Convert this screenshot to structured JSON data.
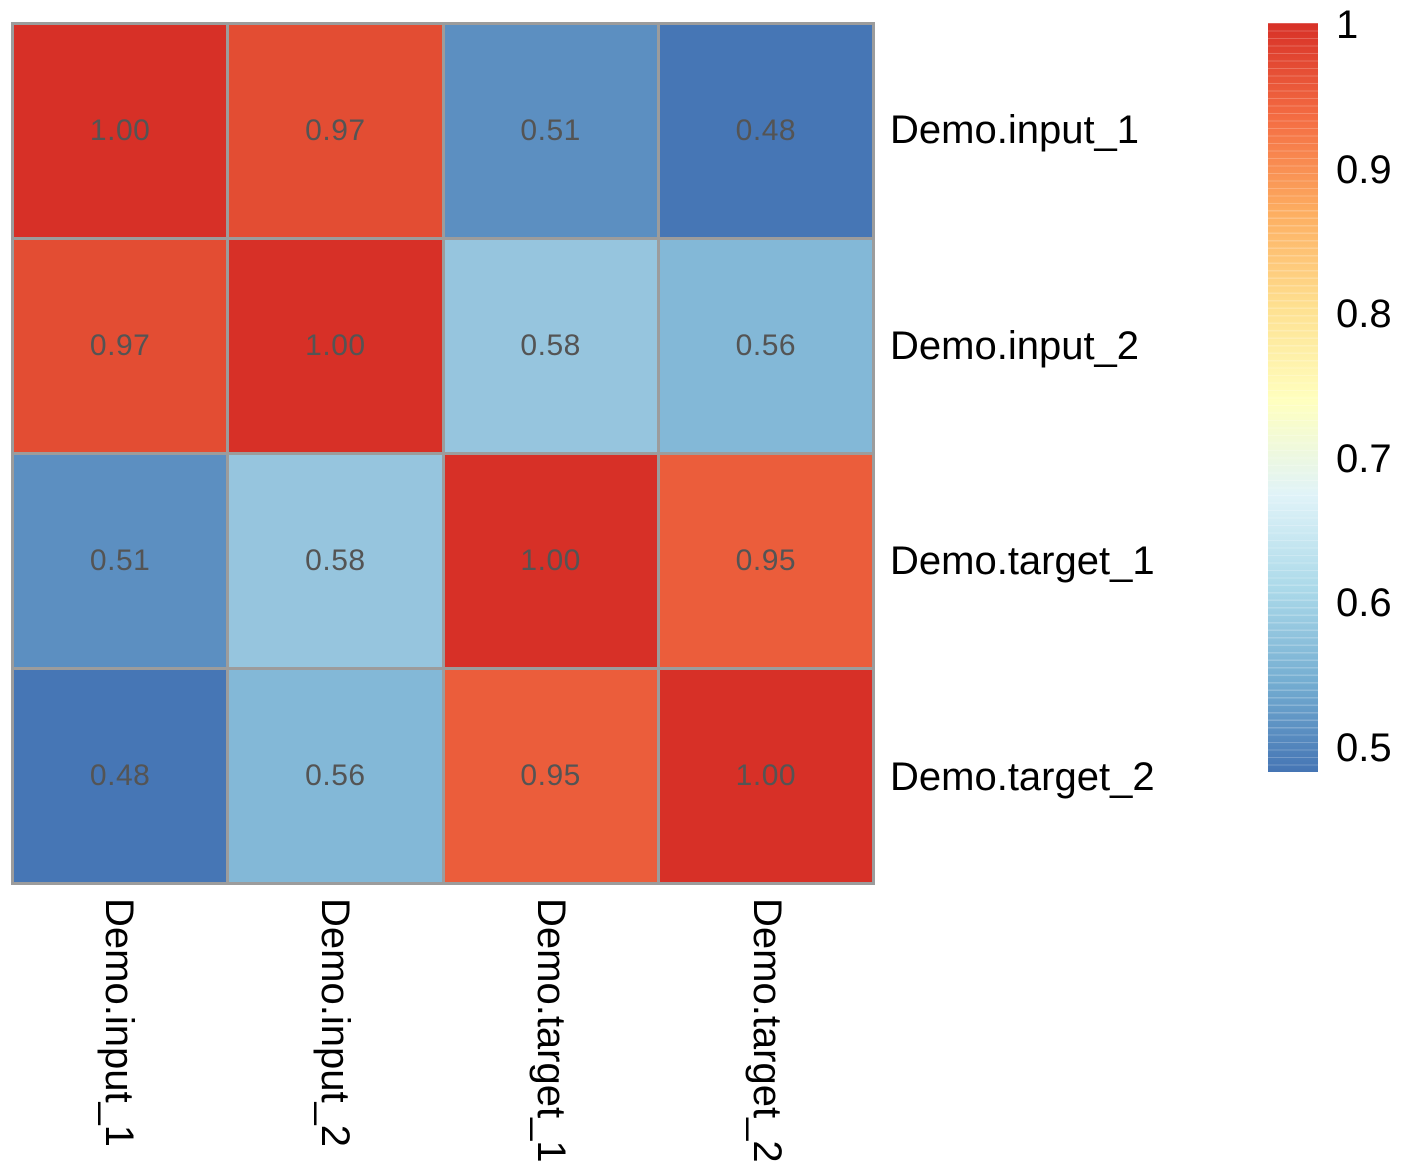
{
  "chart_data": {
    "type": "heatmap",
    "title": "",
    "variables": [
      "Demo.input_1",
      "Demo.input_2",
      "Demo.target_1",
      "Demo.target_2"
    ],
    "values": [
      [
        1.0,
        0.97,
        0.51,
        0.48
      ],
      [
        0.97,
        1.0,
        0.58,
        0.56
      ],
      [
        0.51,
        0.58,
        1.0,
        0.95
      ],
      [
        0.48,
        0.56,
        0.95,
        1.0
      ]
    ],
    "cell_labels": [
      [
        "1.00",
        "0.97",
        "0.51",
        "0.48"
      ],
      [
        "0.97",
        "1.00",
        "0.58",
        "0.56"
      ],
      [
        "0.51",
        "0.58",
        "1.00",
        "0.95"
      ],
      [
        "0.48",
        "0.56",
        "0.95",
        "1.00"
      ]
    ],
    "cell_colors": [
      [
        "#d73027",
        "#e34d33",
        "#5c8fc1",
        "#4676b5"
      ],
      [
        "#e34d33",
        "#d73027",
        "#96c5de",
        "#83b8d7"
      ],
      [
        "#5c8fc1",
        "#96c5de",
        "#d73027",
        "#eb5d3b"
      ],
      [
        "#4676b5",
        "#83b8d7",
        "#eb5d3b",
        "#d73027"
      ]
    ],
    "colorbar": {
      "ticks": [
        {
          "label": "1",
          "value": 1.0
        },
        {
          "label": "0.9",
          "value": 0.9
        },
        {
          "label": "0.8",
          "value": 0.8
        },
        {
          "label": "0.7",
          "value": 0.7
        },
        {
          "label": "0.6",
          "value": 0.6
        },
        {
          "label": "0.5",
          "value": 0.5
        }
      ],
      "range": [
        0.48,
        1.0
      ],
      "gradient": [
        {
          "pos": 0.0,
          "color": "#d73027"
        },
        {
          "pos": 0.128,
          "color": "#f46d43"
        },
        {
          "pos": 0.254,
          "color": "#fdae61"
        },
        {
          "pos": 0.379,
          "color": "#fee090"
        },
        {
          "pos": 0.505,
          "color": "#ffffbf"
        },
        {
          "pos": 0.63,
          "color": "#e0f3f8"
        },
        {
          "pos": 0.756,
          "color": "#abd9e9"
        },
        {
          "pos": 0.881,
          "color": "#74add1"
        },
        {
          "pos": 1.0,
          "color": "#4575b4"
        }
      ],
      "legend_position": "right"
    },
    "colors": {
      "grid": "#9c9c9c",
      "cell_text": "#545454",
      "label_text": "#000000",
      "background": "#ffffff"
    }
  }
}
